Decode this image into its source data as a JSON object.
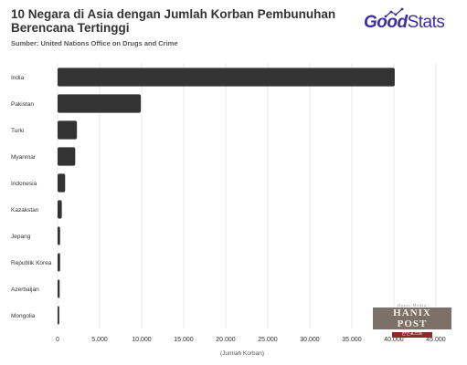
{
  "header": {
    "title_line1": "10 Negara di Asia dengan Jumlah Korban Pembunuhan",
    "title_line2": "Berencana Tertinggi",
    "subtitle": "Sumber: United Nations Office on Drugs and Crime"
  },
  "logo": {
    "part1": "Good",
    "part2": "Stats"
  },
  "watermark": {
    "top": "Hanix Media",
    "main": "HANIX POST",
    "sub": "한인포스트"
  },
  "colors": {
    "bar": "#333333",
    "grid": "#dddddd",
    "title": "#333333",
    "logo": "#3a2ea3"
  },
  "chart_data": {
    "type": "bar",
    "orientation": "horizontal",
    "categories": [
      "India",
      "Pakistan",
      "Turki",
      "Myanmar",
      "Indonesia",
      "Kazakstan",
      "Jepang",
      "Republik Korea",
      "Azerbaijan",
      "Mongolia"
    ],
    "values": [
      40100,
      9900,
      2300,
      2100,
      900,
      500,
      300,
      300,
      250,
      200
    ],
    "xlabel": "(Jumlah Korban)",
    "xlim": [
      0,
      45000
    ],
    "xticks": [
      0,
      5000,
      10000,
      15000,
      20000,
      25000,
      30000,
      35000,
      40000,
      45000
    ],
    "xtick_labels": [
      "0",
      "5.000",
      "10.000",
      "15.000",
      "20.000",
      "25.000",
      "30.000",
      "35.000",
      "40.000",
      "45.000"
    ],
    "grid": true
  }
}
